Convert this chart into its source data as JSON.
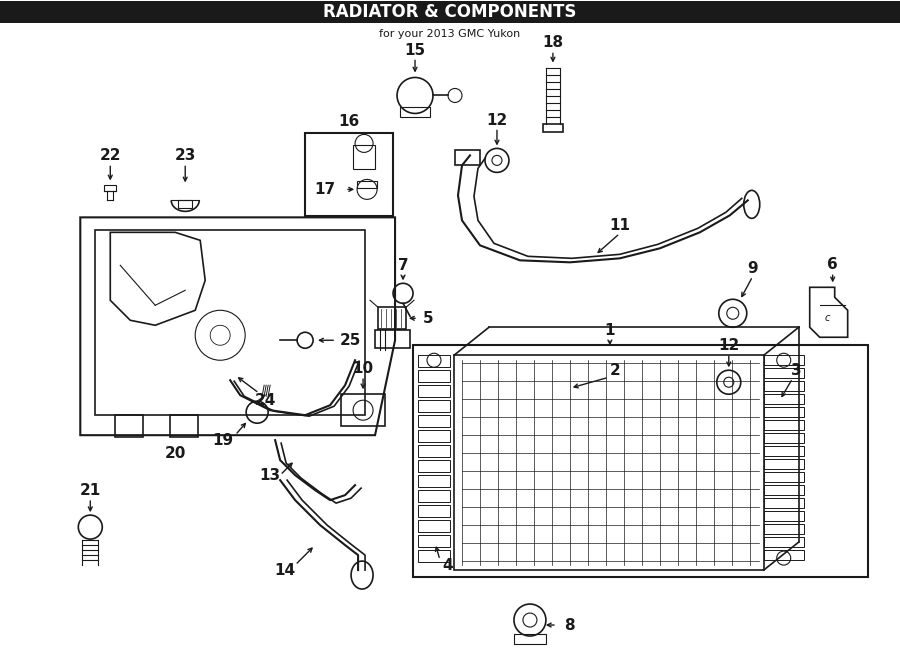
{
  "title": "RADIATOR & COMPONENTS",
  "subtitle": "for your 2013 GMC Yukon",
  "bg_color": "#ffffff",
  "line_color": "#1a1a1a",
  "fig_width": 9.0,
  "fig_height": 6.61,
  "dpi": 100,
  "label_fs": 11,
  "title_fs": 12
}
